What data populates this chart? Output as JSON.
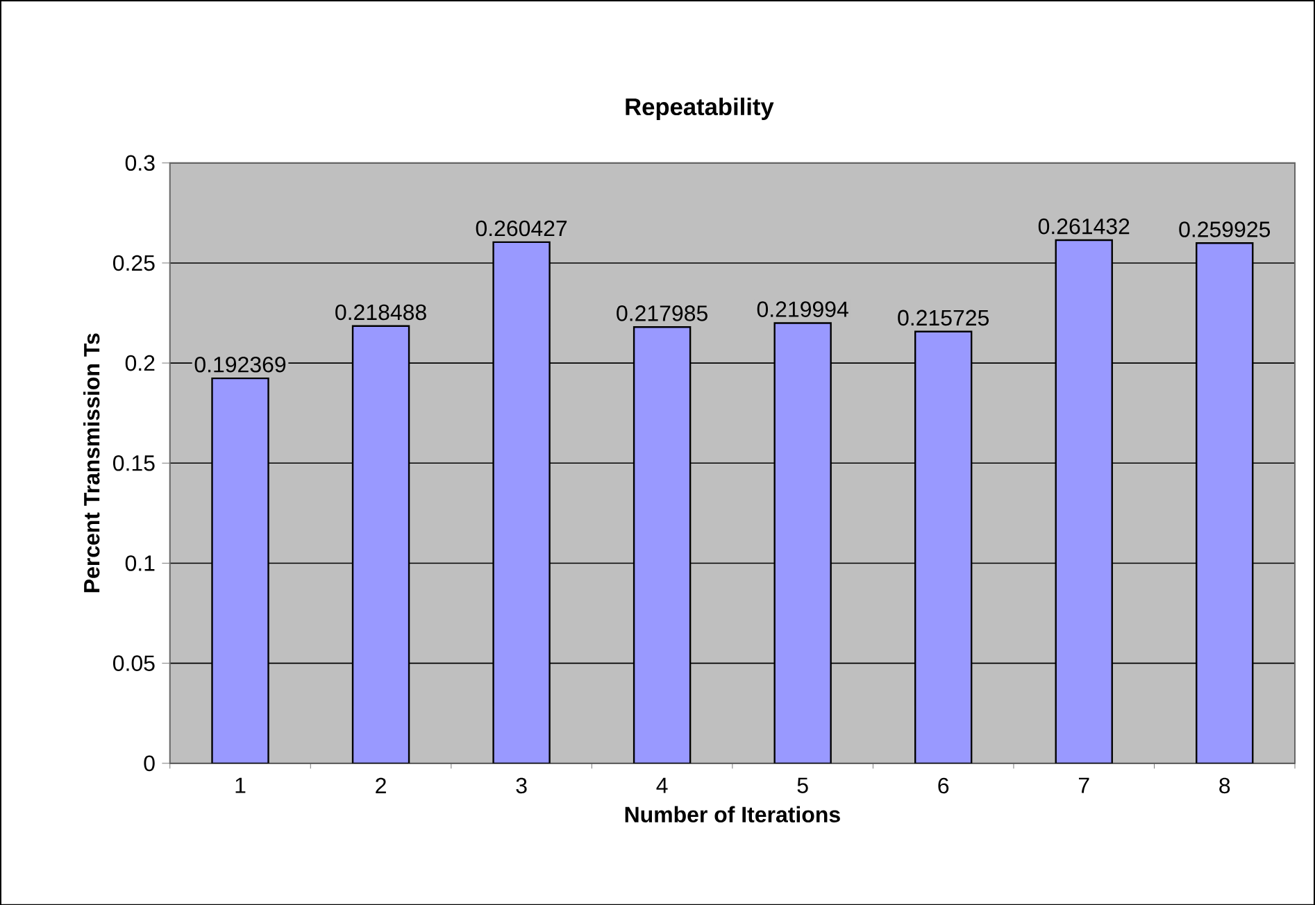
{
  "chart_data": {
    "type": "bar",
    "title": "Repeatability",
    "xlabel": "Number of Iterations",
    "ylabel": "Percent Transmission Ts",
    "categories": [
      "1",
      "2",
      "3",
      "4",
      "5",
      "6",
      "7",
      "8"
    ],
    "values": [
      0.192369,
      0.218488,
      0.260427,
      0.217985,
      0.219994,
      0.215725,
      0.261432,
      0.259925
    ],
    "color": "#9999ff",
    "data_labels": true,
    "grid": "y",
    "ylim": [
      0,
      0.3
    ],
    "yticks": [
      0,
      0.05,
      0.1,
      0.15,
      0.2,
      0.25,
      0.3
    ]
  }
}
